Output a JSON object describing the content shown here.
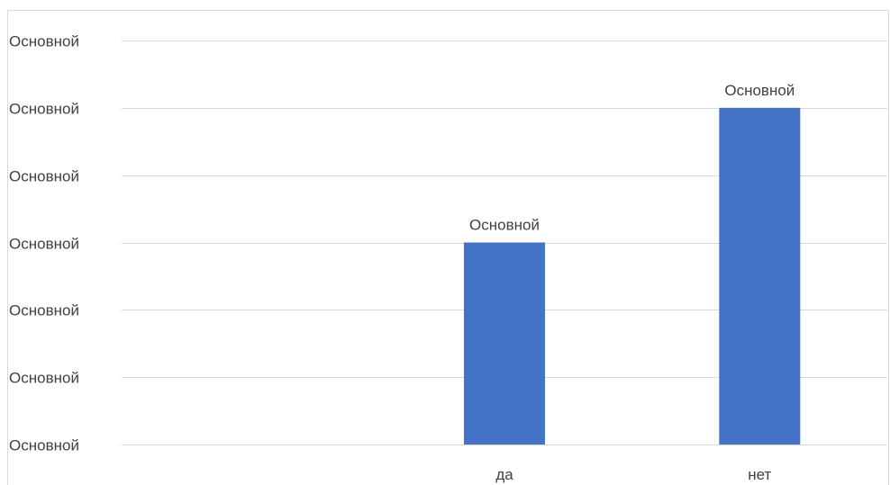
{
  "chart_data": {
    "type": "bar",
    "categories": [
      "",
      "да",
      "нет"
    ],
    "values": [
      0,
      3,
      5
    ],
    "data_labels": [
      "",
      "Основной",
      "Основной"
    ],
    "y_tick_labels": [
      "Основной",
      "Основной",
      "Основной",
      "Основной",
      "Основной",
      "Основной",
      "Основной"
    ],
    "ylim": [
      0,
      6
    ],
    "grid": true,
    "legend": "none",
    "bar_color": "#4472C4",
    "grid_color": "#D9D9D9",
    "text_color": "#404040",
    "title": "",
    "xlabel": "",
    "ylabel": ""
  }
}
